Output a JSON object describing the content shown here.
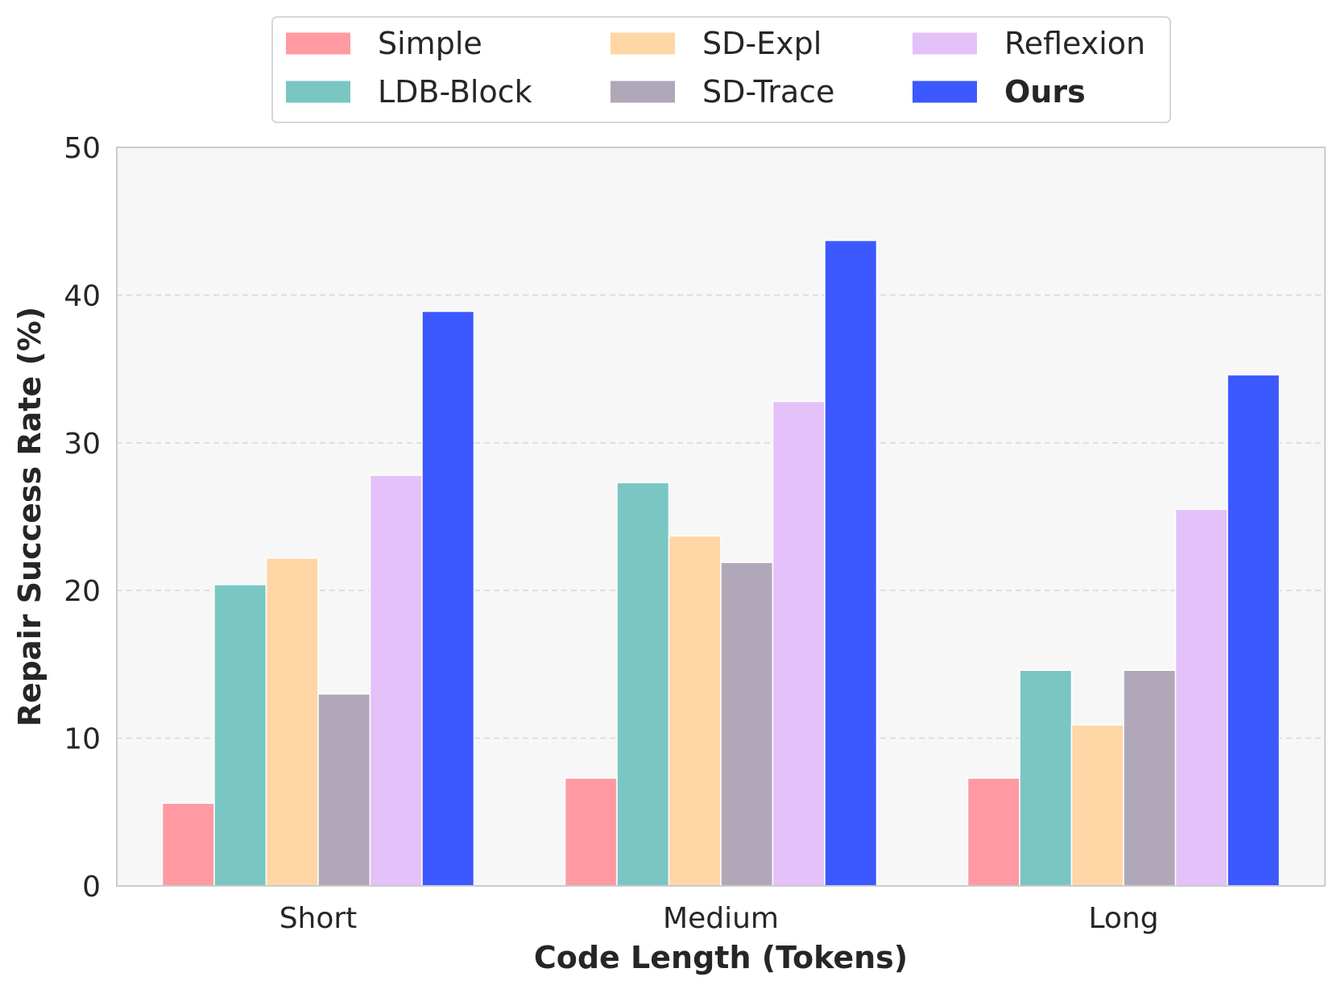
{
  "chart_data": {
    "type": "bar",
    "title": "",
    "xlabel": "Code Length (Tokens)",
    "ylabel": "Repair Success Rate (%)",
    "ylim": [
      0,
      50
    ],
    "yticks": [
      0,
      10,
      20,
      30,
      40,
      50
    ],
    "grid": "y-dashed",
    "legend_position": "top-center",
    "categories": [
      "Short",
      "Medium",
      "Long"
    ],
    "series": [
      {
        "name": "Simple",
        "color": "#ff9aa2",
        "values": [
          5.6,
          7.3,
          7.3
        ],
        "bold": false
      },
      {
        "name": "LDB-Block",
        "color": "#7ac6c3",
        "values": [
          20.4,
          27.3,
          14.6
        ],
        "bold": false
      },
      {
        "name": "SD-Expl",
        "color": "#ffd6a5",
        "values": [
          22.2,
          23.7,
          10.9
        ],
        "bold": false
      },
      {
        "name": "SD-Trace",
        "color": "#b0a8b9",
        "values": [
          13.0,
          21.9,
          14.6
        ],
        "bold": false
      },
      {
        "name": "Reflexion",
        "color": "#e4c1f9",
        "values": [
          27.8,
          32.8,
          25.5
        ],
        "bold": false
      },
      {
        "name": "Ours",
        "color": "#3c58ff",
        "values": [
          38.9,
          43.7,
          34.6
        ],
        "bold": true
      }
    ]
  }
}
